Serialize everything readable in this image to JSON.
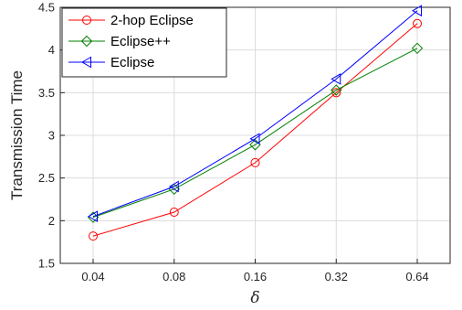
{
  "chart_data": {
    "type": "line",
    "title": "",
    "xlabel": "δ",
    "ylabel": "Transmission Time",
    "categories": [
      "0.04",
      "0.08",
      "0.16",
      "0.32",
      "0.64"
    ],
    "ylim": [
      1.5,
      4.5
    ],
    "yticks": [
      "1.5",
      "2",
      "2.5",
      "3",
      "3.5",
      "4",
      "4.5"
    ],
    "grid": true,
    "legend_position": "top-left",
    "series": [
      {
        "name": "2-hop Eclipse",
        "values": [
          1.82,
          2.1,
          2.68,
          3.5,
          4.31
        ],
        "color": "#ff0000",
        "marker": "circle"
      },
      {
        "name": "Eclipse++",
        "values": [
          2.04,
          2.37,
          2.89,
          3.53,
          4.02
        ],
        "color": "#008000",
        "marker": "diamond"
      },
      {
        "name": "Eclipse",
        "values": [
          2.05,
          2.4,
          2.96,
          3.66,
          4.46
        ],
        "color": "#0000ff",
        "marker": "triangle-left"
      }
    ]
  }
}
